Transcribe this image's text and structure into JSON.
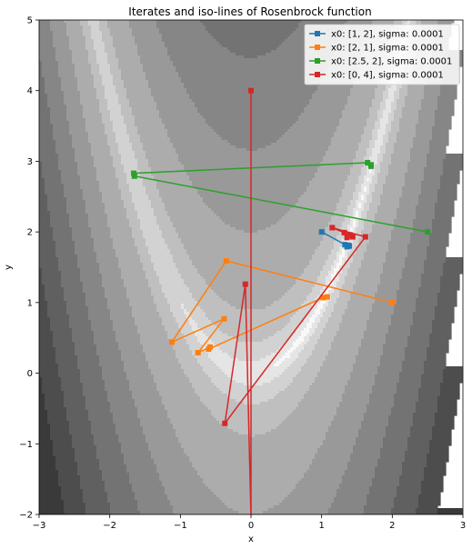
{
  "chart_data": {
    "type": "line",
    "title": "Iterates and iso-lines of Rosenbrock function",
    "xlabel": "x",
    "ylabel": "y",
    "xlim": [
      -3,
      3
    ],
    "ylim": [
      -2,
      5
    ],
    "xticks": [
      -3,
      -2,
      -1,
      0,
      1,
      2,
      3
    ],
    "yticks": [
      -2,
      -1,
      0,
      1,
      2,
      3,
      4,
      5
    ],
    "grid": false,
    "legend_position": "top-right",
    "background": "filled contour plot of the Rosenbrock function (grayscale)",
    "contour_levels": [
      0.5,
      4,
      20,
      80,
      400,
      1000,
      2000,
      3500,
      5500,
      8000,
      12000,
      18000
    ],
    "series": [
      {
        "name": "x0: [1, 2], sigma: 0.0001",
        "color": "#1f77b4",
        "x": [
          1.0,
          1.33,
          1.38,
          1.36,
          1.39
        ],
        "y": [
          2.0,
          1.82,
          1.81,
          1.79,
          1.8
        ]
      },
      {
        "name": "x0: [2, 1], sigma: 0.0001",
        "color": "#ff7f0e",
        "x": [
          2.0,
          -0.35,
          -1.12,
          -0.38,
          -0.75,
          -0.58,
          -0.6,
          1.02,
          1.08
        ],
        "y": [
          1.0,
          1.59,
          0.44,
          0.77,
          0.29,
          0.37,
          0.34,
          1.07,
          1.08
        ]
      },
      {
        "name": "x0: [2.5, 2], sigma: 0.0001",
        "color": "#2ca02c",
        "x": [
          2.5,
          -1.65,
          -1.66,
          1.65,
          1.7,
          1.7
        ],
        "y": [
          2.0,
          2.79,
          2.83,
          2.98,
          2.95,
          2.93
        ]
      },
      {
        "name": "x0: [0, 4], sigma: 0.0001",
        "color": "#d62728",
        "x": [
          0.0,
          0.0,
          -0.08,
          -0.37,
          1.62,
          1.15,
          1.32,
          1.4,
          1.36,
          1.44
        ],
        "y": [
          4.0,
          -2.05,
          1.26,
          -0.71,
          1.93,
          2.06,
          1.99,
          1.96,
          1.92,
          1.93
        ]
      }
    ]
  }
}
